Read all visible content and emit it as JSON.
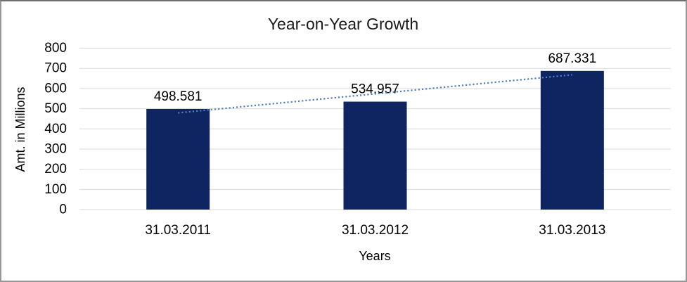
{
  "chart_data": {
    "type": "bar",
    "title": "Year-on-Year Growth",
    "xlabel": "Years",
    "ylabel": "Amt. in Millions",
    "categories": [
      "31.03.2011",
      "31.03.2012",
      "31.03.2013"
    ],
    "values": [
      498.581,
      534.957,
      687.331
    ],
    "data_labels": [
      "498.581",
      "534.957",
      "687.331"
    ],
    "ylim": [
      0,
      800
    ],
    "ytick_labels": [
      "0",
      "100",
      "200",
      "300",
      "400",
      "500",
      "600",
      "700",
      "800"
    ],
    "grid": "horizontal",
    "legend": "none",
    "trendline": {
      "type": "linear",
      "style": "dotted"
    },
    "colors": {
      "bar": "#0e2562",
      "trendline": "#4d7ebf",
      "gridline": "#d9d9d9",
      "text": "#000000",
      "background": "#ffffff",
      "border": "#979797"
    }
  }
}
